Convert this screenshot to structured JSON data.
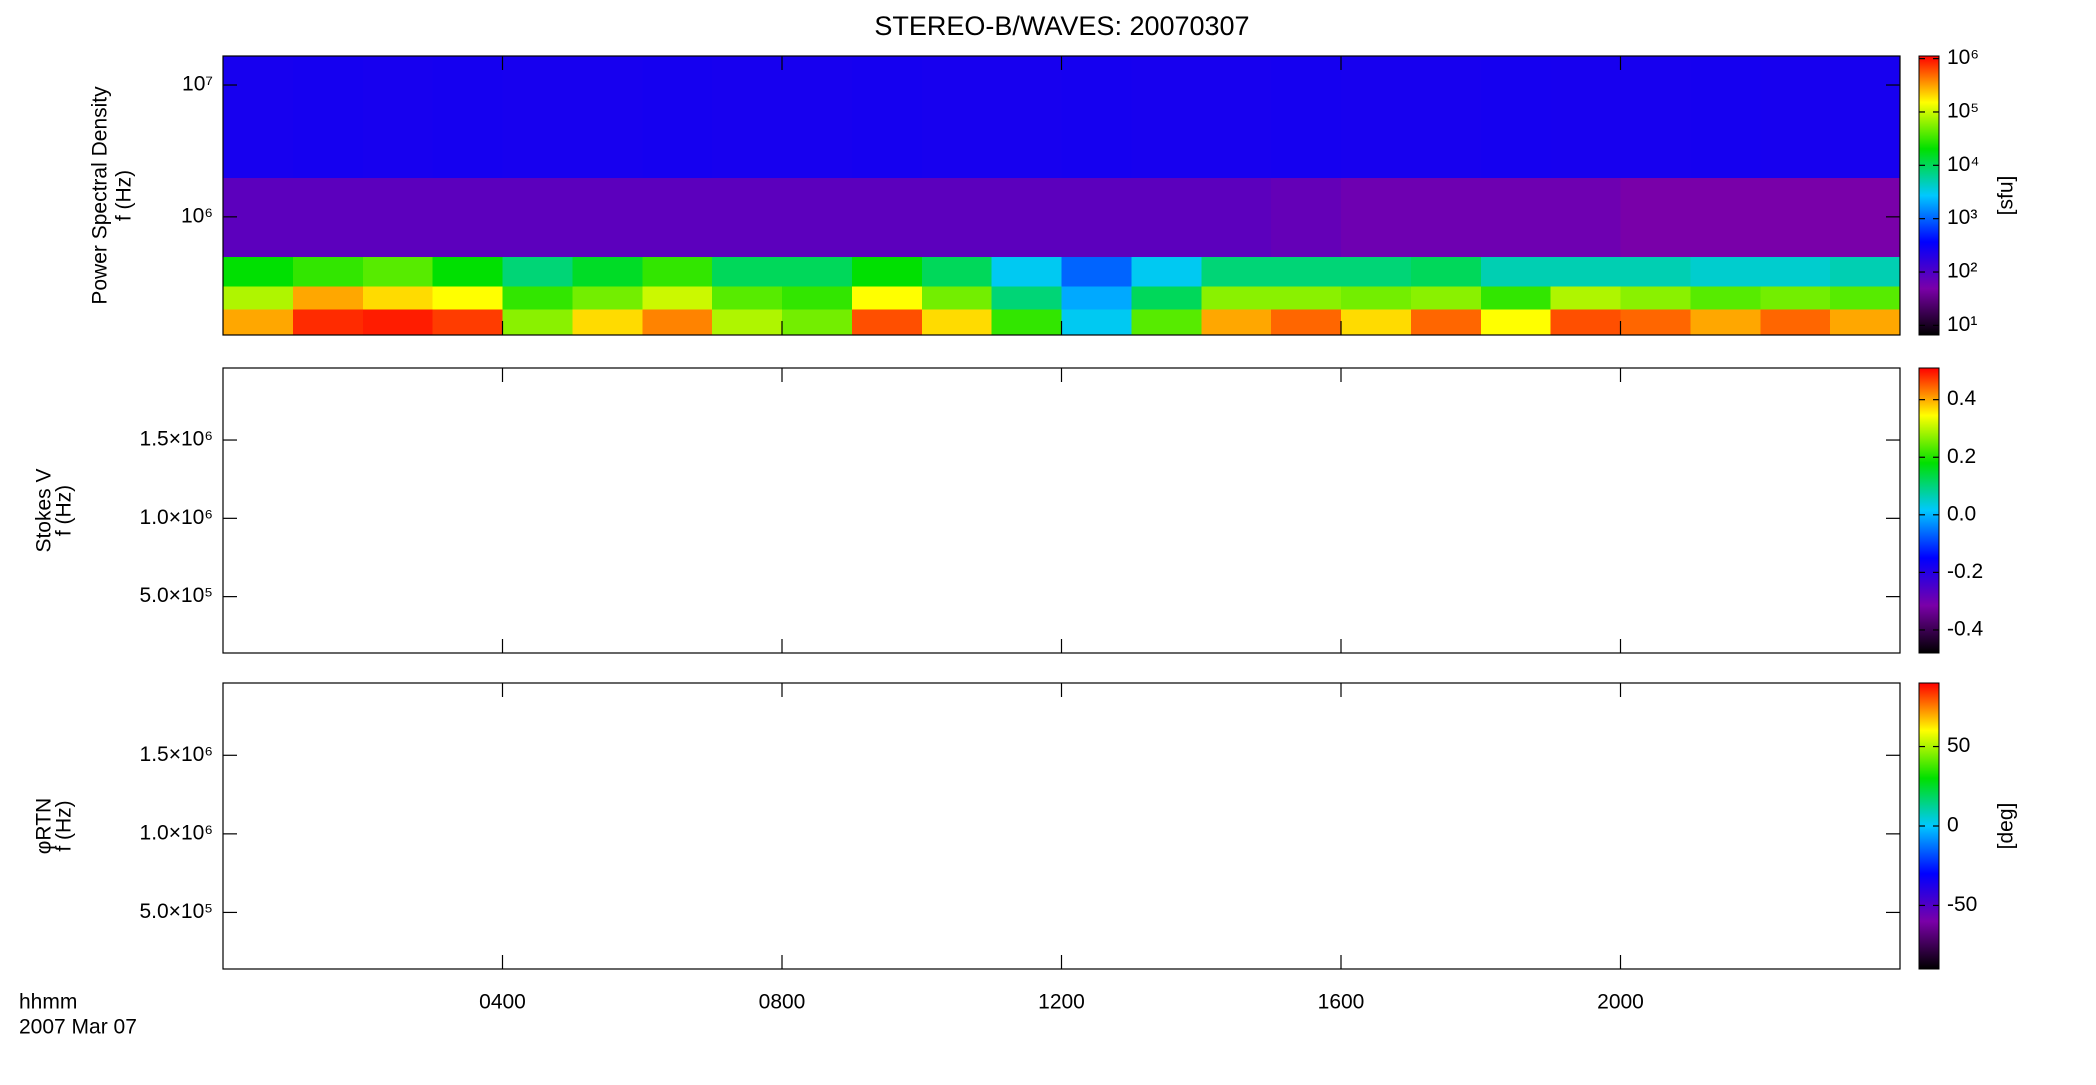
{
  "chart_data": [
    {
      "type": "heatmap",
      "title": "STEREO-B/WAVES: 20070307",
      "ylabel": "Power Spectral Density",
      "ylabel2": "f (Hz)",
      "zlabel": "[sfu]",
      "xlim": [
        0,
        24
      ],
      "xticks": [
        4,
        8,
        12,
        16,
        20
      ],
      "yscale": "log",
      "ylim": [
        127000,
        16600000
      ],
      "yticks": [
        {
          "value": 1000000,
          "label": "10⁶"
        },
        {
          "value": 10000000,
          "label": "10⁷"
        }
      ],
      "xbins": [
        0,
        1,
        2,
        3,
        4,
        5,
        6,
        7,
        8,
        9,
        10,
        11,
        12,
        13,
        14,
        15,
        16,
        17,
        18,
        19,
        20,
        21,
        22,
        23,
        24
      ],
      "ybins": [
        127000,
        200000,
        300000,
        500000,
        2000000,
        16600000
      ],
      "z": [
        [
          300000,
          800000,
          900000,
          700000,
          60000,
          200000,
          400000,
          80000,
          50000,
          600000,
          200000,
          30000,
          3000,
          40000,
          300000,
          500000,
          200000,
          500000,
          150000,
          600000,
          500000,
          300000,
          500000,
          300000
        ],
        [
          80000,
          300000,
          200000,
          150000,
          30000,
          50000,
          100000,
          40000,
          30000,
          150000,
          50000,
          8000,
          2000,
          10000,
          60000,
          60000,
          50000,
          60000,
          30000,
          80000,
          60000,
          40000,
          50000,
          40000
        ],
        [
          20000,
          30000,
          40000,
          20000,
          8000,
          15000,
          30000,
          10000,
          10000,
          20000,
          10000,
          3000,
          1000,
          3000,
          8000,
          8000,
          8000,
          10000,
          5000,
          5000,
          5000,
          4000,
          4000,
          5000
        ],
        [
          80,
          80,
          80,
          80,
          80,
          80,
          80,
          80,
          80,
          80,
          80,
          80,
          80,
          80,
          80,
          70,
          60,
          60,
          60,
          60,
          50,
          50,
          50,
          50
        ],
        [
          250,
          260,
          250,
          260,
          250,
          250,
          260,
          250,
          250,
          260,
          250,
          250,
          260,
          250,
          250,
          260,
          250,
          250,
          260,
          250,
          250,
          260,
          250,
          250
        ]
      ],
      "zscale": "log",
      "zlim": [
        6.6,
        1120000
      ],
      "zticks": [
        {
          "value": 10,
          "label": "10¹"
        },
        {
          "value": 100,
          "label": "10²"
        },
        {
          "value": 1000,
          "label": "10³"
        },
        {
          "value": 10000,
          "label": "10⁴"
        },
        {
          "value": 100000,
          "label": "10⁵"
        },
        {
          "value": 1000000,
          "label": "10⁶"
        }
      ],
      "colormap": [
        "#000000",
        "#7a00a8",
        "#0000ff",
        "#00c8ff",
        "#00e000",
        "#ffff00",
        "#ff0000"
      ]
    },
    {
      "type": "heatmap",
      "ylabel": "Stokes V",
      "ylabel2": "f (Hz)",
      "xlim": [
        0,
        24
      ],
      "xticks": [
        4,
        8,
        12,
        16,
        20
      ],
      "ylim": [
        140000,
        1960000
      ],
      "yticks": [
        {
          "value": 500000,
          "label": "5.0×10⁵"
        },
        {
          "value": 1000000,
          "label": "1.0×10⁶"
        },
        {
          "value": 1500000,
          "label": "1.5×10⁶"
        }
      ],
      "zlim": [
        -0.48,
        0.51
      ],
      "zticks": [
        -0.4,
        -0.2,
        {
          "value": 0,
          "label": "0.0"
        },
        0.2,
        0.4
      ],
      "colormap": [
        "#000000",
        "#7a00a8",
        "#0000ff",
        "#00c8ff",
        "#00e000",
        "#ffff00",
        "#ff0000"
      ]
    },
    {
      "type": "heatmap",
      "ylabel": "φRTN",
      "ylabel2": "f (Hz)",
      "zlabel": "[deg]",
      "xlabel": "hhmm",
      "xlabel2": "2007 Mar 07",
      "xlim": [
        0,
        24
      ],
      "xticks": [
        {
          "value": 4,
          "label": "0400"
        },
        {
          "value": 8,
          "label": "0800"
        },
        {
          "value": 12,
          "label": "1200"
        },
        {
          "value": 16,
          "label": "1600"
        },
        {
          "value": 20,
          "label": "2000"
        }
      ],
      "ylim": [
        140000,
        1960000
      ],
      "yticks": [
        {
          "value": 500000,
          "label": "5.0×10⁵"
        },
        {
          "value": 1000000,
          "label": "1.0×10⁶"
        },
        {
          "value": 1500000,
          "label": "1.5×10⁶"
        }
      ],
      "zlim": [
        -90,
        90
      ],
      "zticks": [
        -50,
        0,
        50
      ],
      "colormap": [
        "#000000",
        "#7a00a8",
        "#0000ff",
        "#00c8ff",
        "#00e000",
        "#ffff00",
        "#ff0000"
      ]
    }
  ]
}
